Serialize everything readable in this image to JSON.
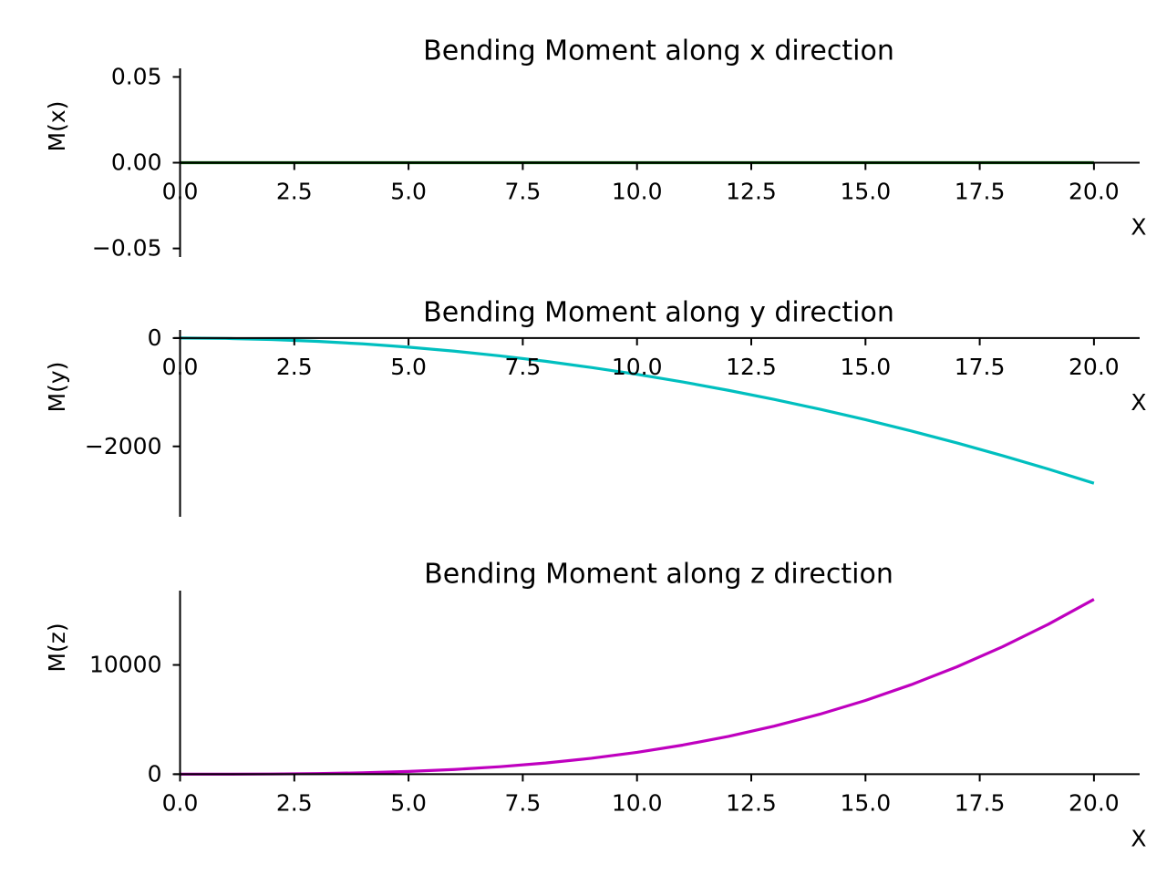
{
  "chart_data": [
    {
      "type": "line",
      "title": "Bending Moment along x direction",
      "xlabel": "X",
      "ylabel": "M(x)",
      "xlim": [
        -0.05,
        21.0
      ],
      "ylim": [
        -0.055,
        0.055
      ],
      "x_ticks": [
        0.0,
        2.5,
        5.0,
        7.5,
        10.0,
        12.5,
        15.0,
        17.5,
        20.0
      ],
      "x_tick_labels": [
        "0.0",
        "2.5",
        "5.0",
        "7.5",
        "10.0",
        "12.5",
        "15.0",
        "17.5",
        "20.0"
      ],
      "y_ticks": [
        -0.05,
        0.0,
        0.05
      ],
      "y_tick_labels": [
        "−0.05",
        "0.00",
        "0.05"
      ],
      "color": "#006400",
      "grid": false,
      "series": [
        {
          "x": [
            0,
            2.5,
            5,
            7.5,
            10,
            12.5,
            15,
            17.5,
            20
          ],
          "y": [
            0,
            0,
            0,
            0,
            0,
            0,
            0,
            0,
            0
          ]
        }
      ]
    },
    {
      "type": "line",
      "title": "Bending Moment along y direction",
      "xlabel": "X",
      "ylabel": "M(y)",
      "xlim": [
        -0.05,
        21.0
      ],
      "ylim": [
        -3300,
        150
      ],
      "x_ticks": [
        0.0,
        2.5,
        5.0,
        7.5,
        10.0,
        12.5,
        15.0,
        17.5,
        20.0
      ],
      "x_tick_labels": [
        "0.0",
        "2.5",
        "5.0",
        "7.5",
        "10.0",
        "12.5",
        "15.0",
        "17.5",
        "20.0"
      ],
      "y_ticks": [
        -2000,
        0
      ],
      "y_tick_labels": [
        "−2000",
        "0"
      ],
      "color": "#00bfbf",
      "grid": false,
      "series": [
        {
          "x": [
            0,
            1,
            2,
            3,
            4,
            5,
            6,
            7,
            8,
            9,
            10,
            11,
            12,
            13,
            14,
            15,
            16,
            17,
            18,
            19,
            20
          ],
          "y": [
            0,
            -6.7,
            -26.8,
            -60.3,
            -107.2,
            -167.5,
            -241.2,
            -328.3,
            -428.8,
            -542.7,
            -670.0,
            -810.7,
            -964.8,
            -1132.3,
            -1313.2,
            -1507.5,
            -1715.2,
            -1936.3,
            -2170.8,
            -2418.7,
            -2680.0
          ]
        }
      ]
    },
    {
      "type": "line",
      "title": "Bending Moment along z direction",
      "xlabel": "X",
      "ylabel": "M(z)",
      "xlim": [
        -0.05,
        21.0
      ],
      "ylim": [
        -300,
        16800
      ],
      "x_ticks": [
        0.0,
        2.5,
        5.0,
        7.5,
        10.0,
        12.5,
        15.0,
        17.5,
        20.0
      ],
      "x_tick_labels": [
        "0.0",
        "2.5",
        "5.0",
        "7.5",
        "10.0",
        "12.5",
        "15.0",
        "17.5",
        "20.0"
      ],
      "y_ticks": [
        0,
        10000
      ],
      "y_tick_labels": [
        "0",
        "10000"
      ],
      "color": "#bf00bf",
      "grid": false,
      "series": [
        {
          "x": [
            0,
            1,
            2,
            3,
            4,
            5,
            6,
            7,
            8,
            9,
            10,
            11,
            12,
            13,
            14,
            15,
            16,
            17,
            18,
            19,
            20
          ],
          "y": [
            0,
            2,
            16,
            54,
            128,
            250,
            432,
            686,
            1024,
            1458,
            2000,
            2662,
            3456,
            4394,
            5488,
            6750,
            8192,
            9826,
            11664,
            13718,
            16000
          ]
        }
      ]
    }
  ]
}
